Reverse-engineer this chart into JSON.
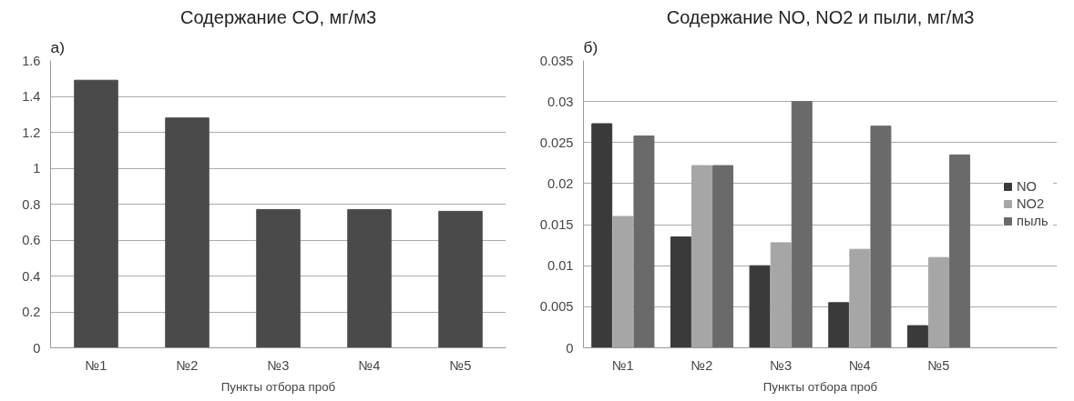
{
  "chart_data": [
    {
      "type": "bar",
      "title": "Содержание CO, мг/м3",
      "xlabel": "Пункты отбора проб",
      "annotations": [
        "а)"
      ],
      "categories": [
        "№1",
        "№2",
        "№3",
        "№4",
        "№5"
      ],
      "series": [
        {
          "color": "#4a4a4a",
          "values": [
            1.49,
            1.28,
            0.77,
            0.77,
            0.76
          ]
        }
      ],
      "ylim": [
        0,
        1.6
      ],
      "yticks": [
        0,
        0.2,
        0.4,
        0.6,
        0.8,
        1,
        1.2,
        1.4,
        1.6
      ],
      "grid": "y",
      "legend": false
    },
    {
      "type": "bar",
      "title": "Содержание NO, NO2 и пыли, мг/м3",
      "xlabel": "Пункты отбора проб",
      "annotations": [
        "б)"
      ],
      "categories": [
        "№1",
        "№2",
        "№3",
        "№4",
        "№5"
      ],
      "series": [
        {
          "name": "NO",
          "color": "#3a3a3a",
          "values": [
            0.0273,
            0.0135,
            0.01,
            0.0055,
            0.0027
          ]
        },
        {
          "name": "NO2",
          "color": "#a6a6a6",
          "values": [
            0.016,
            0.0222,
            0.0128,
            0.012,
            0.011
          ]
        },
        {
          "name": "пыль",
          "color": "#6a6a6a",
          "values": [
            0.0258,
            0.0222,
            0.03,
            0.027,
            0.0235
          ]
        }
      ],
      "ylim": [
        0,
        0.035
      ],
      "yticks": [
        0,
        0.005,
        0.01,
        0.015,
        0.02,
        0.025,
        0.03,
        0.035
      ],
      "grid": "y",
      "legend": "right"
    }
  ]
}
